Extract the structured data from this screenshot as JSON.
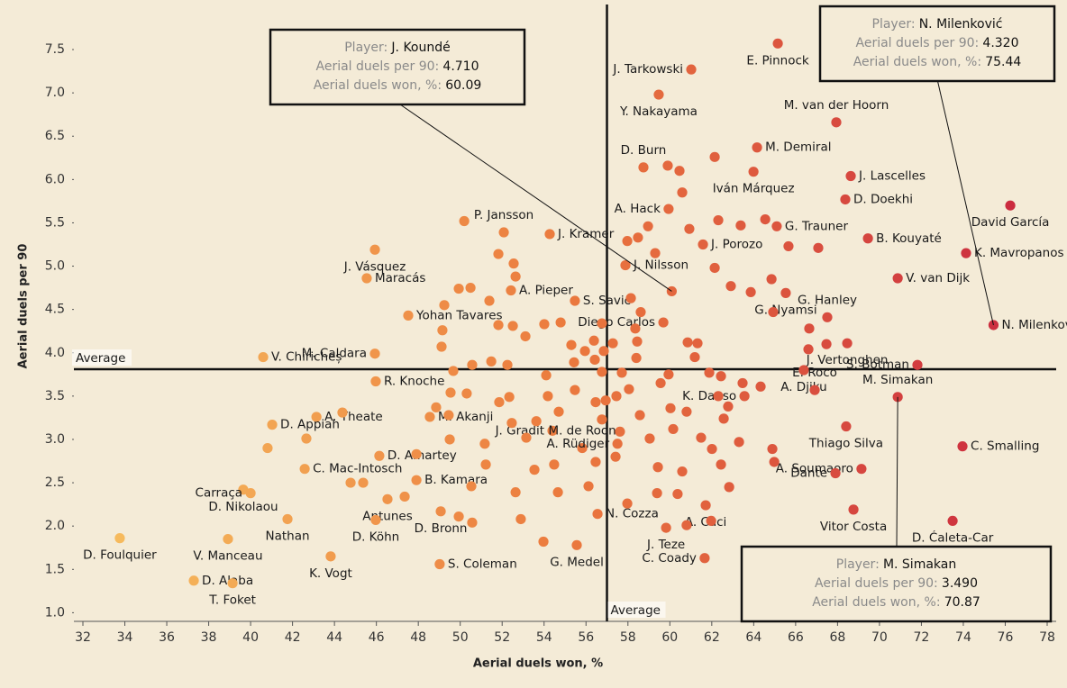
{
  "chart_data": {
    "type": "scatter",
    "x_label": "Aerial duels won, %",
    "y_label": "Aerial duels per 90",
    "xlim": [
      31.57,
      78.43
    ],
    "ylim": [
      0.9,
      8.02
    ],
    "xticks": [
      32,
      34,
      36,
      38,
      40,
      42,
      44,
      46,
      48,
      50,
      52,
      54,
      56,
      58,
      60,
      62,
      64,
      66,
      68,
      70,
      72,
      74,
      76,
      78
    ],
    "yticks": [
      {
        "value": 1,
        "label": "1.0"
      },
      1.5,
      {
        "value": 2,
        "label": "2.0"
      },
      2.5,
      {
        "value": 3,
        "label": "3.0"
      },
      3.5,
      {
        "value": 4,
        "label": "4.0"
      },
      4.5,
      {
        "value": 5,
        "label": "5.0"
      },
      5.5,
      {
        "value": 6,
        "label": "6.0"
      },
      6.5,
      {
        "value": 7,
        "label": "7.0"
      },
      7.5
    ],
    "color_scale": [
      "#f7c160",
      "#eb7a3e",
      "#c8243f"
    ],
    "average": {
      "x": 57.0,
      "y": 3.81,
      "label": "Average"
    },
    "tooltip_fields": [
      "Player:",
      "Aerial duels per 90:",
      "Aerial duels won, %:"
    ],
    "tooltips": [
      {
        "player": "J. Koundé",
        "per90": {
          "value": 4.71,
          "label": "4.710"
        },
        "won": 60.09
      },
      {
        "player": "N. Milenković",
        "per90": {
          "value": 4.32,
          "label": "4.320"
        },
        "won": 75.44
      },
      {
        "player": "M. Simakan",
        "per90": {
          "value": 3.49,
          "label": "3.490"
        },
        "won": 70.87
      }
    ],
    "points": [
      {
        "label": "E. Pinnock",
        "x": 65.15,
        "y": 7.57
      },
      {
        "label": "J. Tarkowski",
        "x": 61.02,
        "y": 7.27
      },
      {
        "label": "Y. Nakayama",
        "x": 59.47,
        "y": 6.98
      },
      {
        "label": "M. van der Hoorn",
        "x": 67.94,
        "y": 6.66
      },
      {
        "label": "D. Burn",
        "x": 58.74,
        "y": 6.14
      },
      {
        "label": "M. Demiral",
        "x": 64.16,
        "y": 6.37
      },
      {
        "label": "J. Lascelles",
        "x": 68.63,
        "y": 6.04
      },
      {
        "label": "Iván Márquez",
        "x": 63.99,
        "y": 6.09
      },
      {
        "label": "D. Doekhi",
        "x": 68.37,
        "y": 5.77
      },
      {
        "label": "David García",
        "x": 76.24,
        "y": 5.7
      },
      {
        "label": "A. Hack",
        "x": 59.94,
        "y": 5.66
      },
      {
        "label": "G. Trauner",
        "x": 65.1,
        "y": 5.46
      },
      {
        "label": "P. Jansson",
        "x": 52.08,
        "y": 5.39
      },
      {
        "label": "J. Kramer",
        "x": 54.27,
        "y": 5.37
      },
      {
        "label": "J. Porozo",
        "x": 61.58,
        "y": 5.25
      },
      {
        "label": "B. Kouyaté",
        "x": 69.45,
        "y": 5.32
      },
      {
        "label": "J. Vásquez",
        "x": 45.93,
        "y": 5.19
      },
      {
        "label": "K. Mavropanos",
        "x": 74.13,
        "y": 5.15
      },
      {
        "label": "J. Nilsson",
        "x": 57.88,
        "y": 5.01
      },
      {
        "label": "Maracás",
        "x": 45.54,
        "y": 4.86
      },
      {
        "label": "A. Pieper",
        "x": 52.42,
        "y": 4.72
      },
      {
        "label": "S. Savić",
        "x": 55.47,
        "y": 4.6
      },
      {
        "label": "G. Nyamsi",
        "x": 65.53,
        "y": 4.69
      },
      {
        "label": "V. van Dijk",
        "x": 70.87,
        "y": 4.86
      },
      {
        "label": "Diego Carlos",
        "x": 59.69,
        "y": 4.35
      },
      {
        "label": "Yohan Tavares",
        "x": 47.52,
        "y": 4.43
      },
      {
        "label": "G. Hanley",
        "x": 67.51,
        "y": 4.41
      },
      {
        "label": "N. Milenković",
        "x": 75.44,
        "y": 4.32
      },
      {
        "label": "M. Caldara",
        "x": 45.93,
        "y": 3.99
      },
      {
        "label": "J. Vertonghen",
        "x": 68.46,
        "y": 4.11
      },
      {
        "label": "V. Chiricheș",
        "x": 40.6,
        "y": 3.95
      },
      {
        "label": "A. Djiku",
        "x": 66.39,
        "y": 3.8
      },
      {
        "label": "S. Botman",
        "x": 71.81,
        "y": 3.86
      },
      {
        "label": "R. Knoche",
        "x": 45.97,
        "y": 3.67
      },
      {
        "label": "E. Roco",
        "x": 66.91,
        "y": 3.57
      },
      {
        "label": "A. Theate",
        "x": 43.14,
        "y": 3.26
      },
      {
        "label": "M. Simakan",
        "x": 70.87,
        "y": 3.49
      },
      {
        "label": "M. Akanji",
        "x": 48.55,
        "y": 3.26
      },
      {
        "label": "K. Danso",
        "x": 63.56,
        "y": 3.5
      },
      {
        "label": "Thiago Silva",
        "x": 68.41,
        "y": 3.15
      },
      {
        "label": "D. Appiah",
        "x": 41.03,
        "y": 3.17
      },
      {
        "label": "J. Gradit",
        "x": 54.4,
        "y": 3.1
      },
      {
        "label": "C. Smalling",
        "x": 73.96,
        "y": 2.92
      },
      {
        "label": "D. Amartey",
        "x": 46.14,
        "y": 2.81
      },
      {
        "label": "M. de Roon",
        "x": 55.82,
        "y": 2.9
      },
      {
        "label": "A. Rüdiger",
        "x": 57.5,
        "y": 2.95
      },
      {
        "label": "C. Mac-Intosch",
        "x": 42.58,
        "y": 2.66
      },
      {
        "label": "B. Kamara",
        "x": 47.91,
        "y": 2.53
      },
      {
        "label": "A. Soumaoro",
        "x": 69.14,
        "y": 2.66
      },
      {
        "label": "D. Nikolaou",
        "x": 39.65,
        "y": 2.42
      },
      {
        "label": "Dante",
        "x": 67.9,
        "y": 2.61
      },
      {
        "label": "Antunes",
        "x": 46.53,
        "y": 2.31
      },
      {
        "label": "Carraça",
        "x": 40.0,
        "y": 2.38
      },
      {
        "label": "N. Cozza",
        "x": 56.55,
        "y": 2.14
      },
      {
        "label": "A. Caci",
        "x": 61.71,
        "y": 2.24
      },
      {
        "label": "Vitor Costa",
        "x": 68.76,
        "y": 2.19
      },
      {
        "label": "Nathan",
        "x": 41.76,
        "y": 2.08
      },
      {
        "label": "D. Köhn",
        "x": 45.97,
        "y": 2.07
      },
      {
        "label": "D. Bronn",
        "x": 49.07,
        "y": 2.17
      },
      {
        "label": "D. Ćaleta-Car",
        "x": 73.49,
        "y": 2.06
      },
      {
        "label": "D. Foulquier",
        "x": 33.76,
        "y": 1.86
      },
      {
        "label": "V. Manceau",
        "x": 38.92,
        "y": 1.85
      },
      {
        "label": "J. Teze",
        "x": 59.82,
        "y": 1.98
      },
      {
        "label": "K. Vogt",
        "x": 43.82,
        "y": 1.65
      },
      {
        "label": "G. Medel",
        "x": 55.56,
        "y": 1.78
      },
      {
        "label": "C. Coady",
        "x": 61.66,
        "y": 1.63
      },
      {
        "label": "D. Alaba",
        "x": 37.29,
        "y": 1.37
      },
      {
        "label": "T. Foket",
        "x": 39.14,
        "y": 1.34
      },
      {
        "label": "S. Coleman",
        "x": 49.02,
        "y": 1.56
      },
      {
        "x": 60.09,
        "y": 4.71
      },
      {
        "x": 50.19,
        "y": 5.52
      },
      {
        "x": 51.82,
        "y": 5.14
      },
      {
        "x": 52.55,
        "y": 5.03
      },
      {
        "x": 52.64,
        "y": 4.88
      },
      {
        "x": 50.49,
        "y": 4.75
      },
      {
        "x": 49.93,
        "y": 4.74
      },
      {
        "x": 49.24,
        "y": 4.55
      },
      {
        "x": 49.15,
        "y": 4.26
      },
      {
        "x": 49.11,
        "y": 4.07
      },
      {
        "x": 51.39,
        "y": 4.6
      },
      {
        "x": 51.82,
        "y": 4.32
      },
      {
        "x": 52.51,
        "y": 4.31
      },
      {
        "x": 53.11,
        "y": 4.19
      },
      {
        "x": 54.01,
        "y": 4.33
      },
      {
        "x": 54.79,
        "y": 4.35
      },
      {
        "x": 55.3,
        "y": 4.09
      },
      {
        "x": 55.95,
        "y": 4.02
      },
      {
        "x": 56.38,
        "y": 4.14
      },
      {
        "x": 56.76,
        "y": 4.34
      },
      {
        "x": 57.28,
        "y": 4.11
      },
      {
        "x": 56.85,
        "y": 4.02
      },
      {
        "x": 56.76,
        "y": 3.78
      },
      {
        "x": 57.71,
        "y": 3.77
      },
      {
        "x": 58.4,
        "y": 3.94
      },
      {
        "x": 58.44,
        "y": 4.13
      },
      {
        "x": 58.35,
        "y": 4.28
      },
      {
        "x": 58.61,
        "y": 4.47
      },
      {
        "x": 58.14,
        "y": 4.63
      },
      {
        "x": 59.3,
        "y": 5.15
      },
      {
        "x": 58.48,
        "y": 5.33
      },
      {
        "x": 58.96,
        "y": 5.46
      },
      {
        "x": 57.97,
        "y": 5.29
      },
      {
        "x": 59.9,
        "y": 6.16
      },
      {
        "x": 60.46,
        "y": 6.1
      },
      {
        "x": 60.59,
        "y": 5.85
      },
      {
        "x": 60.93,
        "y": 5.43
      },
      {
        "x": 62.14,
        "y": 6.26
      },
      {
        "x": 62.31,
        "y": 5.53
      },
      {
        "x": 63.38,
        "y": 5.47
      },
      {
        "x": 64.55,
        "y": 5.54
      },
      {
        "x": 65.66,
        "y": 5.23
      },
      {
        "x": 62.14,
        "y": 4.98
      },
      {
        "x": 62.91,
        "y": 4.77
      },
      {
        "x": 63.86,
        "y": 4.7
      },
      {
        "x": 64.85,
        "y": 4.85
      },
      {
        "x": 64.93,
        "y": 4.47
      },
      {
        "x": 66.65,
        "y": 4.28
      },
      {
        "x": 66.61,
        "y": 4.04
      },
      {
        "x": 67.47,
        "y": 4.1
      },
      {
        "x": 67.08,
        "y": 5.21
      },
      {
        "x": 60.85,
        "y": 4.12
      },
      {
        "x": 61.32,
        "y": 4.11
      },
      {
        "x": 61.19,
        "y": 3.95
      },
      {
        "x": 61.88,
        "y": 3.77
      },
      {
        "x": 62.44,
        "y": 3.73
      },
      {
        "x": 63.47,
        "y": 3.65
      },
      {
        "x": 62.31,
        "y": 3.5
      },
      {
        "x": 62.78,
        "y": 3.38
      },
      {
        "x": 62.57,
        "y": 3.24
      },
      {
        "x": 64.33,
        "y": 3.61
      },
      {
        "x": 59.94,
        "y": 3.75
      },
      {
        "x": 59.56,
        "y": 3.65
      },
      {
        "x": 60.03,
        "y": 3.36
      },
      {
        "x": 60.8,
        "y": 3.32
      },
      {
        "x": 60.16,
        "y": 3.12
      },
      {
        "x": 58.57,
        "y": 3.28
      },
      {
        "x": 59.04,
        "y": 3.01
      },
      {
        "x": 59.43,
        "y": 2.68
      },
      {
        "x": 60.59,
        "y": 2.63
      },
      {
        "x": 60.37,
        "y": 2.37
      },
      {
        "x": 59.39,
        "y": 2.38
      },
      {
        "x": 61.49,
        "y": 3.02
      },
      {
        "x": 62.01,
        "y": 2.89
      },
      {
        "x": 62.44,
        "y": 2.71
      },
      {
        "x": 63.3,
        "y": 2.97
      },
      {
        "x": 64.89,
        "y": 2.89
      },
      {
        "x": 64.98,
        "y": 2.74
      },
      {
        "x": 62.83,
        "y": 2.45
      },
      {
        "x": 60.8,
        "y": 2.01
      },
      {
        "x": 61.97,
        "y": 2.06
      },
      {
        "x": 57.97,
        "y": 2.26
      },
      {
        "x": 53.97,
        "y": 1.82
      },
      {
        "x": 52.89,
        "y": 2.08
      },
      {
        "x": 50.57,
        "y": 2.04
      },
      {
        "x": 49.93,
        "y": 2.11
      },
      {
        "x": 52.64,
        "y": 2.39
      },
      {
        "x": 54.66,
        "y": 2.39
      },
      {
        "x": 56.12,
        "y": 2.46
      },
      {
        "x": 56.46,
        "y": 2.74
      },
      {
        "x": 57.41,
        "y": 2.8
      },
      {
        "x": 57.62,
        "y": 3.09
      },
      {
        "x": 56.76,
        "y": 3.23
      },
      {
        "x": 56.46,
        "y": 3.43
      },
      {
        "x": 56.94,
        "y": 3.45
      },
      {
        "x": 57.45,
        "y": 3.5
      },
      {
        "x": 58.05,
        "y": 3.58
      },
      {
        "x": 54.7,
        "y": 3.32
      },
      {
        "x": 54.18,
        "y": 3.5
      },
      {
        "x": 53.63,
        "y": 3.21
      },
      {
        "x": 51.86,
        "y": 3.43
      },
      {
        "x": 52.46,
        "y": 3.19
      },
      {
        "x": 53.15,
        "y": 3.02
      },
      {
        "x": 52.34,
        "y": 3.49
      },
      {
        "x": 52.25,
        "y": 3.86
      },
      {
        "x": 51.48,
        "y": 3.9
      },
      {
        "x": 50.57,
        "y": 3.86
      },
      {
        "x": 49.67,
        "y": 3.79
      },
      {
        "x": 49.54,
        "y": 3.54
      },
      {
        "x": 48.85,
        "y": 3.37
      },
      {
        "x": 49.45,
        "y": 3.28
      },
      {
        "x": 50.31,
        "y": 3.53
      },
      {
        "x": 54.1,
        "y": 3.74
      },
      {
        "x": 55.43,
        "y": 3.89
      },
      {
        "x": 56.42,
        "y": 3.92
      },
      {
        "x": 55.47,
        "y": 3.57
      },
      {
        "x": 53.54,
        "y": 2.65
      },
      {
        "x": 54.48,
        "y": 2.71
      },
      {
        "x": 51.22,
        "y": 2.71
      },
      {
        "x": 50.53,
        "y": 2.46
      },
      {
        "x": 51.17,
        "y": 2.95
      },
      {
        "x": 49.5,
        "y": 3.0
      },
      {
        "x": 47.91,
        "y": 2.83
      },
      {
        "x": 47.35,
        "y": 2.34
      },
      {
        "x": 42.66,
        "y": 3.01
      },
      {
        "x": 44.38,
        "y": 3.31
      },
      {
        "x": 40.81,
        "y": 2.9
      },
      {
        "x": 45.37,
        "y": 2.5
      },
      {
        "x": 44.77,
        "y": 2.5
      }
    ]
  }
}
